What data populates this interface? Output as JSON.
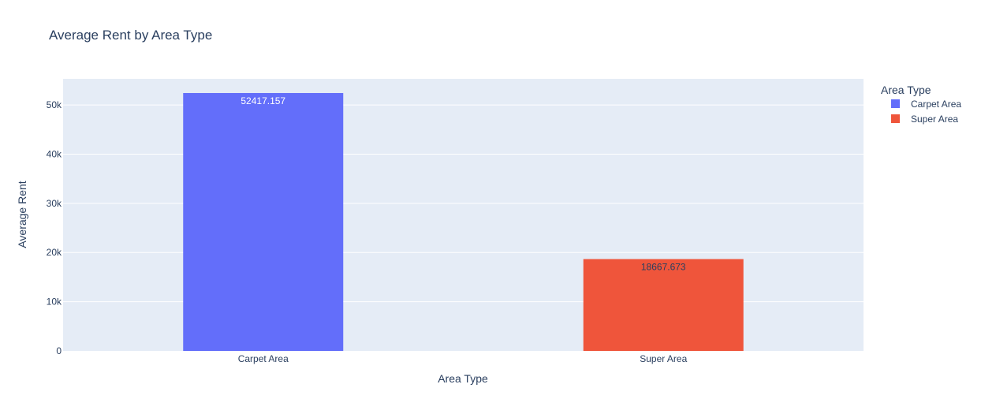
{
  "chart_data": {
    "type": "bar",
    "title": "Average Rent by Area Type",
    "xlabel": "Area Type",
    "ylabel": "Average Rent",
    "categories": [
      "Carpet Area",
      "Super Area"
    ],
    "values": [
      52417.157,
      18667.673
    ],
    "value_labels": [
      "52417.157",
      "18667.673"
    ],
    "ylim": [
      0,
      55300
    ],
    "yticks": [
      0,
      10000,
      20000,
      30000,
      40000,
      50000
    ],
    "ytick_labels": [
      "0",
      "10k",
      "20k",
      "30k",
      "40k",
      "50k"
    ],
    "grid": true,
    "legend": {
      "title": "Area Type",
      "placement": "top-right",
      "entries": [
        {
          "label": "Carpet Area",
          "color": "#636efa"
        },
        {
          "label": "Super Area",
          "color": "#ef553b"
        }
      ]
    },
    "colors": [
      "#636efa",
      "#ef553b"
    ],
    "plot_background": "#e5ecf6"
  }
}
